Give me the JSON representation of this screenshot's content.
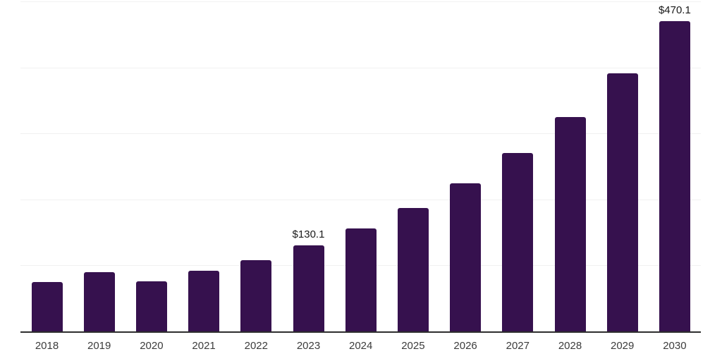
{
  "chart_data": {
    "type": "bar",
    "title": "",
    "categories": [
      "2018",
      "2019",
      "2020",
      "2021",
      "2022",
      "2023",
      "2024",
      "2025",
      "2026",
      "2027",
      "2028",
      "2029",
      "2030"
    ],
    "values": [
      75,
      90,
      76,
      92,
      108,
      130.1,
      156,
      186.5,
      224.5,
      270,
      325,
      391.5,
      470.1
    ],
    "data_labels": {
      "2023": "$130.1",
      "2030": "$470.1"
    },
    "xlabel": "",
    "ylabel": "",
    "ylim": [
      0,
      500
    ],
    "gridline_values": [
      100,
      200,
      300,
      400,
      500
    ],
    "grid": "horizontal",
    "legend": "none",
    "colors": {
      "bar": "#36114e",
      "gridline": "#f1f1f1",
      "axis_line": "#2e2e2e",
      "tick_label": "#3c3c3c",
      "data_label": "#1a1a1a",
      "background": "#ffffff"
    }
  }
}
